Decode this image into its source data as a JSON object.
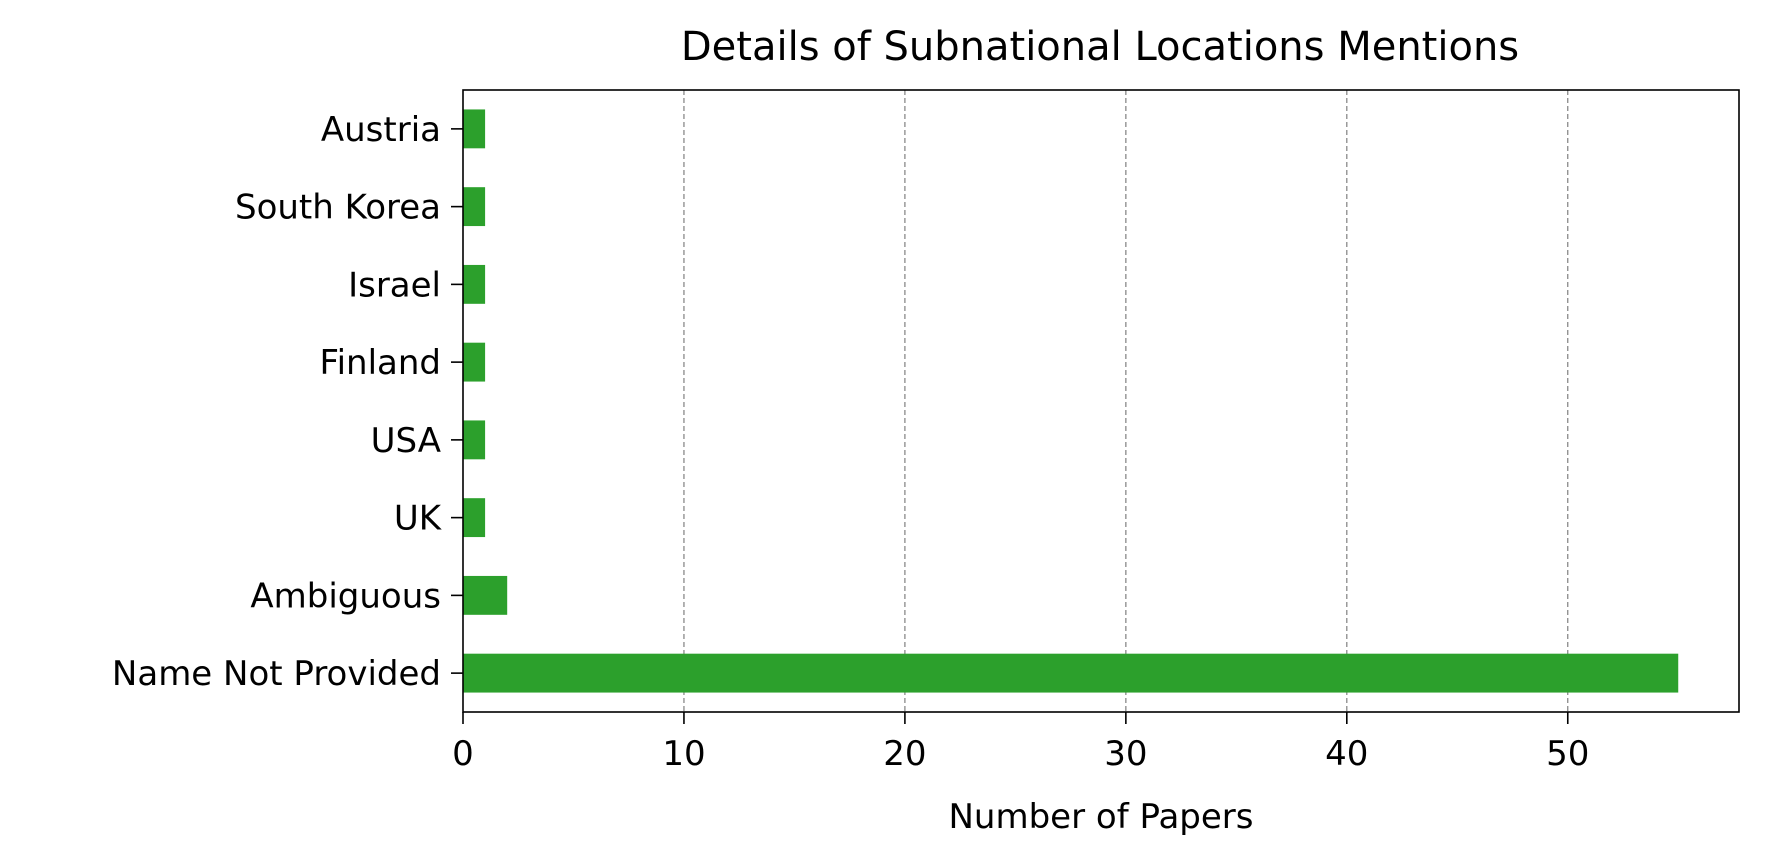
{
  "chart_data": {
    "type": "bar",
    "orientation": "horizontal",
    "title": "Details of Subnational Locations Mentions",
    "xlabel": "Number of Papers",
    "ylabel": "",
    "categories": [
      "Austria",
      "South Korea",
      "Israel",
      "Finland",
      "USA",
      "UK",
      "Ambiguous",
      "Name Not Provided"
    ],
    "values": [
      1,
      1,
      1,
      1,
      1,
      1,
      2,
      55
    ],
    "xlim": [
      0,
      57.75
    ],
    "xticks": [
      0,
      10,
      20,
      30,
      40,
      50
    ],
    "grid": "vertical dashed",
    "bar_color": "#2ca02c",
    "grid_color": "#808080"
  }
}
